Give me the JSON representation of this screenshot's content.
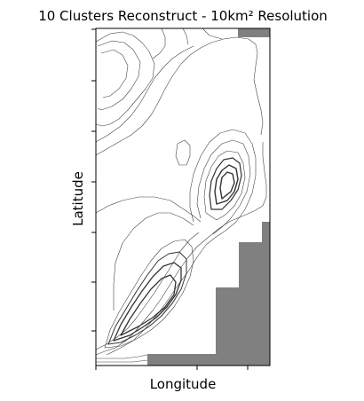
{
  "chart_data": {
    "type": "contour",
    "title": "10 Clusters Reconstruct - 10km² Resolution",
    "xlabel": "Longitude",
    "ylabel": "Latitude",
    "x_tick_labels": [
      "",
      "",
      ""
    ],
    "y_tick_labels": [
      "",
      "",
      "",
      "",
      "",
      "",
      ""
    ],
    "grid": false,
    "legend": "none",
    "contour_levels": 10,
    "masked_fill_color": "#808080",
    "line_color": "#333333",
    "background_color": "#ffffff"
  }
}
